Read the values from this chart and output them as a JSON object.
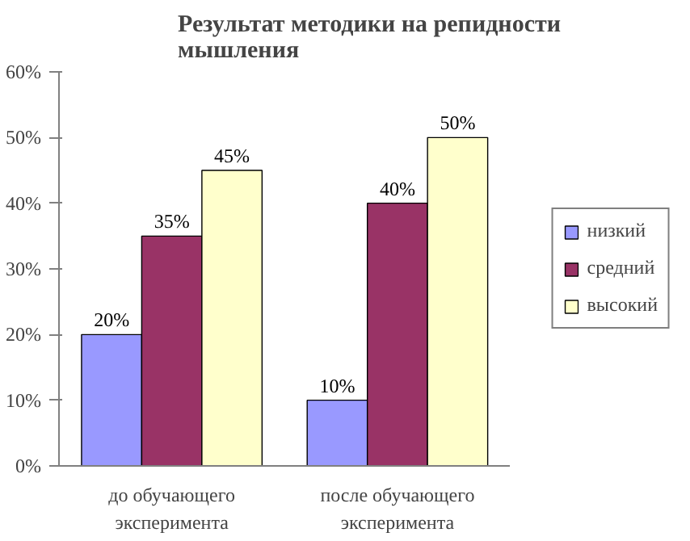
{
  "chart_data": {
    "type": "bar",
    "title": "Результат методики на репидности\nмышления",
    "categories": [
      "до обучающего эксперимента",
      "после обучающего эксперимента"
    ],
    "series": [
      {
        "name": "низкий",
        "color": "#9999ff",
        "values": [
          20,
          10
        ],
        "value_labels": [
          "20%",
          "10%"
        ]
      },
      {
        "name": "средний",
        "color": "#993366",
        "values": [
          35,
          40
        ],
        "value_labels": [
          "35%",
          "40%"
        ]
      },
      {
        "name": "высокий",
        "color": "#ffffcc",
        "values": [
          45,
          50
        ],
        "value_labels": [
          "45%",
          "50%"
        ]
      }
    ],
    "ylim": [
      0,
      60
    ],
    "yticks": [
      {
        "value": 0,
        "label": "0%"
      },
      {
        "value": 10,
        "label": "10%"
      },
      {
        "value": 20,
        "label": "20%"
      },
      {
        "value": 30,
        "label": "30%"
      },
      {
        "value": 40,
        "label": "40%"
      },
      {
        "value": 50,
        "label": "50%"
      },
      {
        "value": 60,
        "label": "60%"
      }
    ],
    "legend": "right"
  }
}
